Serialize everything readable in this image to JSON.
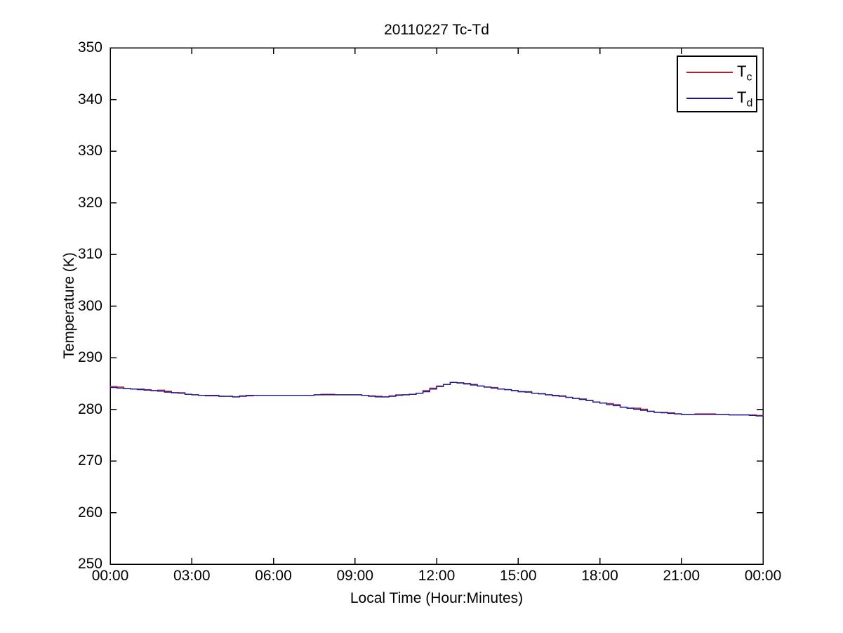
{
  "legend": {
    "entries": [
      {
        "label_main": "T",
        "label_sub": "c",
        "color": "#b41e2d"
      },
      {
        "label_main": "T",
        "label_sub": "d",
        "color": "#141996"
      }
    ]
  },
  "chart_data": {
    "type": "line",
    "title": "20110227 Tc-Td",
    "xlabel": "Local Time (Hour:Minutes)",
    "ylabel": "Temperature (K)",
    "xlim_hours": [
      0,
      24
    ],
    "ylim": [
      250,
      350
    ],
    "grid": false,
    "legend_position": "top-right",
    "axis_color": "#000000",
    "x_ticks": [
      "00:00",
      "03:00",
      "06:00",
      "09:00",
      "12:00",
      "15:00",
      "18:00",
      "21:00",
      "00:00"
    ],
    "x_tick_hours": [
      0,
      3,
      6,
      9,
      12,
      15,
      18,
      21,
      24
    ],
    "y_ticks": [
      250,
      260,
      270,
      280,
      290,
      300,
      310,
      320,
      330,
      340,
      350
    ],
    "x_hours": [
      0,
      0.25,
      0.5,
      0.75,
      1,
      1.25,
      1.5,
      1.75,
      2,
      2.25,
      2.5,
      2.75,
      3,
      3.25,
      3.5,
      3.75,
      4,
      4.25,
      4.5,
      4.75,
      5,
      5.25,
      5.5,
      5.75,
      6,
      6.25,
      6.5,
      6.75,
      7,
      7.25,
      7.5,
      7.75,
      8,
      8.25,
      8.5,
      8.75,
      9,
      9.25,
      9.5,
      9.75,
      10,
      10.25,
      10.5,
      10.75,
      11,
      11.25,
      11.5,
      11.75,
      12,
      12.25,
      12.5,
      12.75,
      13,
      13.25,
      13.5,
      13.75,
      14,
      14.25,
      14.5,
      14.75,
      15,
      15.25,
      15.5,
      15.75,
      16,
      16.25,
      16.5,
      16.75,
      17,
      17.25,
      17.5,
      17.75,
      18,
      18.25,
      18.5,
      18.75,
      19,
      19.25,
      19.5,
      19.75,
      20,
      20.25,
      20.5,
      20.75,
      21,
      21.25,
      21.5,
      21.75,
      22,
      22.25,
      22.5,
      22.75,
      23,
      23.25,
      23.5,
      23.75,
      24
    ],
    "series": [
      {
        "name": "Tc",
        "color": "#b41e2d",
        "values": [
          284.4,
          284.3,
          284.0,
          283.9,
          283.9,
          283.8,
          283.6,
          283.7,
          283.5,
          283.2,
          283.2,
          282.9,
          282.8,
          282.7,
          282.7,
          282.7,
          282.5,
          282.5,
          282.4,
          282.6,
          282.7,
          282.7,
          282.7,
          282.7,
          282.7,
          282.7,
          282.7,
          282.7,
          282.7,
          282.7,
          282.8,
          282.9,
          282.9,
          282.8,
          282.8,
          282.8,
          282.8,
          282.7,
          282.6,
          282.5,
          282.4,
          282.6,
          282.8,
          282.8,
          282.9,
          283.1,
          283.6,
          284.1,
          284.5,
          284.8,
          285.2,
          285.1,
          285.0,
          284.8,
          284.5,
          284.3,
          284.2,
          283.9,
          283.8,
          283.6,
          283.4,
          283.4,
          283.1,
          283.0,
          282.8,
          282.7,
          282.6,
          282.3,
          282.1,
          282.0,
          281.7,
          281.4,
          281.2,
          281.1,
          280.9,
          280.4,
          280.2,
          280.2,
          280.0,
          279.6,
          279.4,
          279.4,
          279.3,
          279.1,
          279.0,
          279.0,
          279.1,
          279.1,
          279.1,
          279.0,
          279.0,
          278.9,
          278.9,
          278.9,
          278.9,
          278.8,
          278.7
        ]
      },
      {
        "name": "Td",
        "color": "#141996",
        "values": [
          284.2,
          284.1,
          284.0,
          283.9,
          283.8,
          283.7,
          283.6,
          283.5,
          283.3,
          283.2,
          283.1,
          282.9,
          282.8,
          282.7,
          282.6,
          282.6,
          282.5,
          282.5,
          282.4,
          282.5,
          282.6,
          282.7,
          282.7,
          282.7,
          282.7,
          282.7,
          282.7,
          282.7,
          282.7,
          282.7,
          282.8,
          282.8,
          282.8,
          282.8,
          282.8,
          282.8,
          282.8,
          282.7,
          282.5,
          282.4,
          282.4,
          282.5,
          282.7,
          282.8,
          282.9,
          283.1,
          283.4,
          283.9,
          284.4,
          284.8,
          285.2,
          285.1,
          284.9,
          284.7,
          284.5,
          284.3,
          284.1,
          283.9,
          283.8,
          283.6,
          283.4,
          283.3,
          283.1,
          283.0,
          282.8,
          282.6,
          282.5,
          282.3,
          282.1,
          281.9,
          281.7,
          281.4,
          281.2,
          280.9,
          280.7,
          280.4,
          280.2,
          280.0,
          279.8,
          279.6,
          279.4,
          279.3,
          279.2,
          279.1,
          279.0,
          279.0,
          279.0,
          279.0,
          279.0,
          279.0,
          279.0,
          278.9,
          278.9,
          278.9,
          278.8,
          278.7,
          278.7
        ]
      }
    ]
  }
}
